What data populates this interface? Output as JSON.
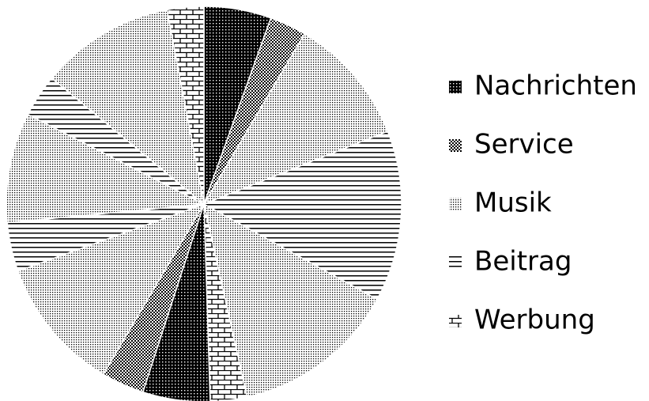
{
  "chart_data": {
    "type": "pie",
    "categories": [
      {
        "name": "Nachrichten",
        "pattern": "dense-dots"
      },
      {
        "name": "Service",
        "pattern": "checker"
      },
      {
        "name": "Musik",
        "pattern": "light-dots"
      },
      {
        "name": "Beitrag",
        "pattern": "hlines"
      },
      {
        "name": "Werbung",
        "pattern": "brick"
      }
    ],
    "slices": [
      {
        "category": "Nachrichten",
        "value": 5.5
      },
      {
        "category": "Service",
        "value": 3
      },
      {
        "category": "Musik",
        "value": 10.5
      },
      {
        "category": "Beitrag",
        "value": 14
      },
      {
        "category": "Musik",
        "value": 13.5
      },
      {
        "category": "Werbung",
        "value": 3
      },
      {
        "category": "Nachrichten",
        "value": 5.5
      },
      {
        "category": "Service",
        "value": 3.5
      },
      {
        "category": "Musik",
        "value": 11
      },
      {
        "category": "Beitrag",
        "value": 4
      },
      {
        "category": "Musik",
        "value": 9
      },
      {
        "category": "Beitrag",
        "value": 3.5
      },
      {
        "category": "Musik",
        "value": 11
      },
      {
        "category": "Werbung",
        "value": 3
      }
    ],
    "legend": "right"
  }
}
